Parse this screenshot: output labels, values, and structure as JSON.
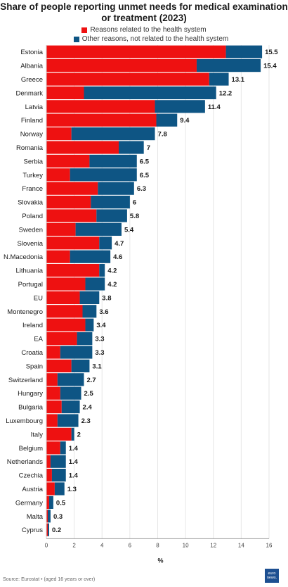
{
  "title": "Share of people reporting unmet needs for medical examination or treatment (2023)",
  "legend": {
    "health": "Reasons related to the health system",
    "other": "Other reasons, not related to the health system"
  },
  "colors": {
    "health": "#ee1111",
    "other": "#0e5584",
    "axis": "#999999",
    "grid": "#e6e6e6"
  },
  "source": "Source: Eurostat • (aged 16 years or over)",
  "logo": {
    "line1": "euro",
    "line2": "news."
  },
  "chart_data": {
    "type": "bar",
    "orientation": "horizontal",
    "stacked": true,
    "title": "Share of people reporting unmet needs for medical examination or treatment (2023)",
    "xlabel": "%",
    "xlim": [
      0,
      16
    ],
    "xticks": [
      0,
      2,
      4,
      6,
      8,
      10,
      12,
      14,
      16
    ],
    "categories": [
      "Estonia",
      "Albania",
      "Greece",
      "Denmark",
      "Latvia",
      "Finland",
      "Norway",
      "Romania",
      "Serbia",
      "Turkey",
      "France",
      "Slovakia",
      "Poland",
      "Sweden",
      "Slovenia",
      "N.Macedonia",
      "Lithuania",
      "Portugal",
      "EU",
      "Montenegro",
      "Ireland",
      "EA",
      "Croatia",
      "Spain",
      "Switzerland",
      "Hungary",
      "Bulgaria",
      "Luxembourg",
      "Italy",
      "Belgium",
      "Netherlands",
      "Czechia",
      "Austria",
      "Germany",
      "Malta",
      "Cyprus"
    ],
    "totals": [
      15.5,
      15.4,
      13.1,
      12.2,
      11.4,
      9.4,
      7.8,
      7,
      6.5,
      6.5,
      6.3,
      6,
      5.8,
      5.4,
      4.7,
      4.6,
      4.2,
      4.2,
      3.8,
      3.6,
      3.4,
      3.3,
      3.3,
      3.1,
      2.7,
      2.5,
      2.4,
      2.3,
      2,
      1.4,
      1.4,
      1.4,
      1.3,
      0.5,
      0.3,
      0.2
    ],
    "series": [
      {
        "name": "Reasons related to the health system",
        "values": [
          12.9,
          10.8,
          11.7,
          2.7,
          7.8,
          7.9,
          1.8,
          5.2,
          3.1,
          1.7,
          3.7,
          3.2,
          3.6,
          2.1,
          3.8,
          1.7,
          3.8,
          2.8,
          2.4,
          2.6,
          2.8,
          2.2,
          1.0,
          1.8,
          0.8,
          1.0,
          1.1,
          0.8,
          1.8,
          1.0,
          0.3,
          0.4,
          0.6,
          0.2,
          0.1,
          0.1
        ]
      },
      {
        "name": "Other reasons, not related to the health system",
        "values": [
          2.6,
          4.6,
          1.4,
          9.5,
          3.6,
          1.5,
          6.0,
          1.8,
          3.4,
          4.8,
          2.6,
          2.8,
          2.2,
          3.3,
          0.9,
          2.9,
          0.4,
          1.4,
          1.4,
          1.0,
          0.6,
          1.1,
          2.3,
          1.3,
          1.9,
          1.5,
          1.3,
          1.5,
          0.2,
          0.4,
          1.1,
          1.0,
          0.7,
          0.3,
          0.2,
          0.1
        ]
      }
    ],
    "grid": true
  }
}
